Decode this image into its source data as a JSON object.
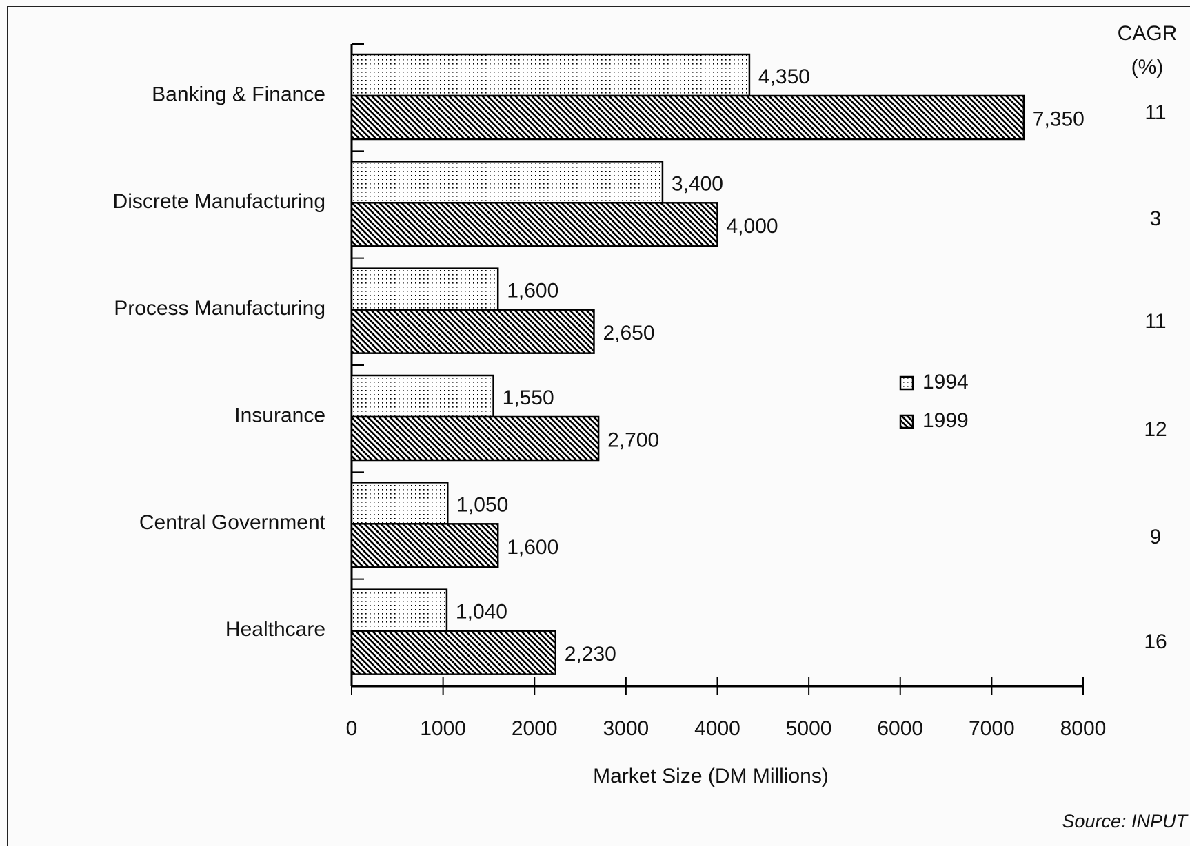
{
  "chart_data": {
    "type": "bar",
    "orientation": "horizontal",
    "categories": [
      "Banking &  Finance",
      "Discrete Manufacturing",
      "Process Manufacturing",
      "Insurance",
      "Central Government",
      "Healthcare"
    ],
    "series": [
      {
        "name": "1994",
        "color": "#000000",
        "pattern": "dots",
        "values": [
          4350,
          3400,
          1600,
          1550,
          1050,
          1040
        ],
        "value_labels": [
          "4,350",
          "3,400",
          "1,600",
          "1,550",
          "1,050",
          "1,040"
        ]
      },
      {
        "name": "1999",
        "color": "#000000",
        "pattern": "hatch",
        "values": [
          7350,
          4000,
          2650,
          2700,
          1600,
          2230
        ],
        "value_labels": [
          "7,350",
          "4,000",
          "2,650",
          "2,700",
          "1,600",
          "2,230"
        ]
      }
    ],
    "xlim": [
      0,
      8000
    ],
    "xticks": [
      0,
      1000,
      2000,
      3000,
      4000,
      5000,
      6000,
      7000,
      8000
    ],
    "x_label": "Market Size (DM Millions)",
    "cagr": {
      "title": "CAGR",
      "unit": "(%)",
      "values": [
        11,
        3,
        11,
        12,
        9,
        16
      ]
    },
    "source": "Source: INPUT"
  }
}
